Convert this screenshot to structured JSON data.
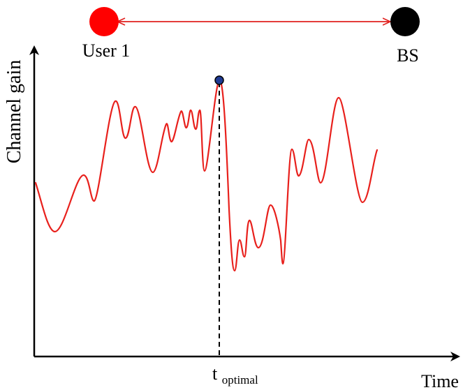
{
  "link": {
    "user_label": "User 1",
    "bs_label": "BS",
    "user_color": "#ff0000",
    "bs_color": "#000000",
    "arrow_color": "#e0201e"
  },
  "axes": {
    "ylabel": "Channel gain",
    "xlabel": "Time"
  },
  "marker": {
    "label_main": "t",
    "label_sub": "optimal"
  },
  "curve": {
    "color": "#e8201c"
  },
  "peak_marker": {
    "fill": "#1f3a93",
    "stroke": "#000000"
  }
}
